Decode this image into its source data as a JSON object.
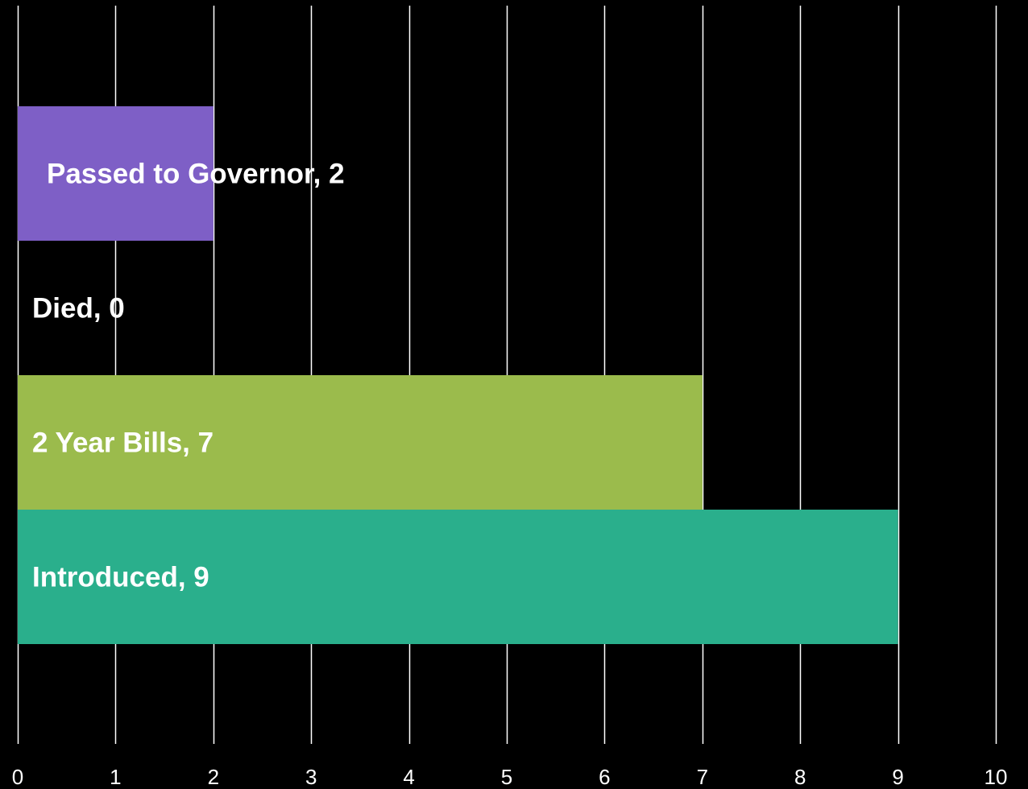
{
  "chart_data": {
    "type": "bar",
    "orientation": "horizontal",
    "title": "",
    "xlabel": "",
    "ylabel": "",
    "xlim": [
      0,
      10
    ],
    "x_ticks": [
      0,
      1,
      2,
      3,
      4,
      5,
      6,
      7,
      8,
      9,
      10
    ],
    "grid": true,
    "legend": "none",
    "categories": [
      "Passed to Governor",
      "Died",
      "2 Year Bills",
      "Introduced"
    ],
    "values": [
      2,
      0,
      7,
      9
    ],
    "data_labels": [
      "Passed to Governor, 2",
      "Died, 0",
      "2 Year Bills, 7",
      "Introduced, 9"
    ],
    "colors": [
      "#7e5fc6",
      "#000000",
      "#9bbb4c",
      "#2aaf8c"
    ],
    "background": "#000000",
    "gridline_color": "#ffffff"
  }
}
